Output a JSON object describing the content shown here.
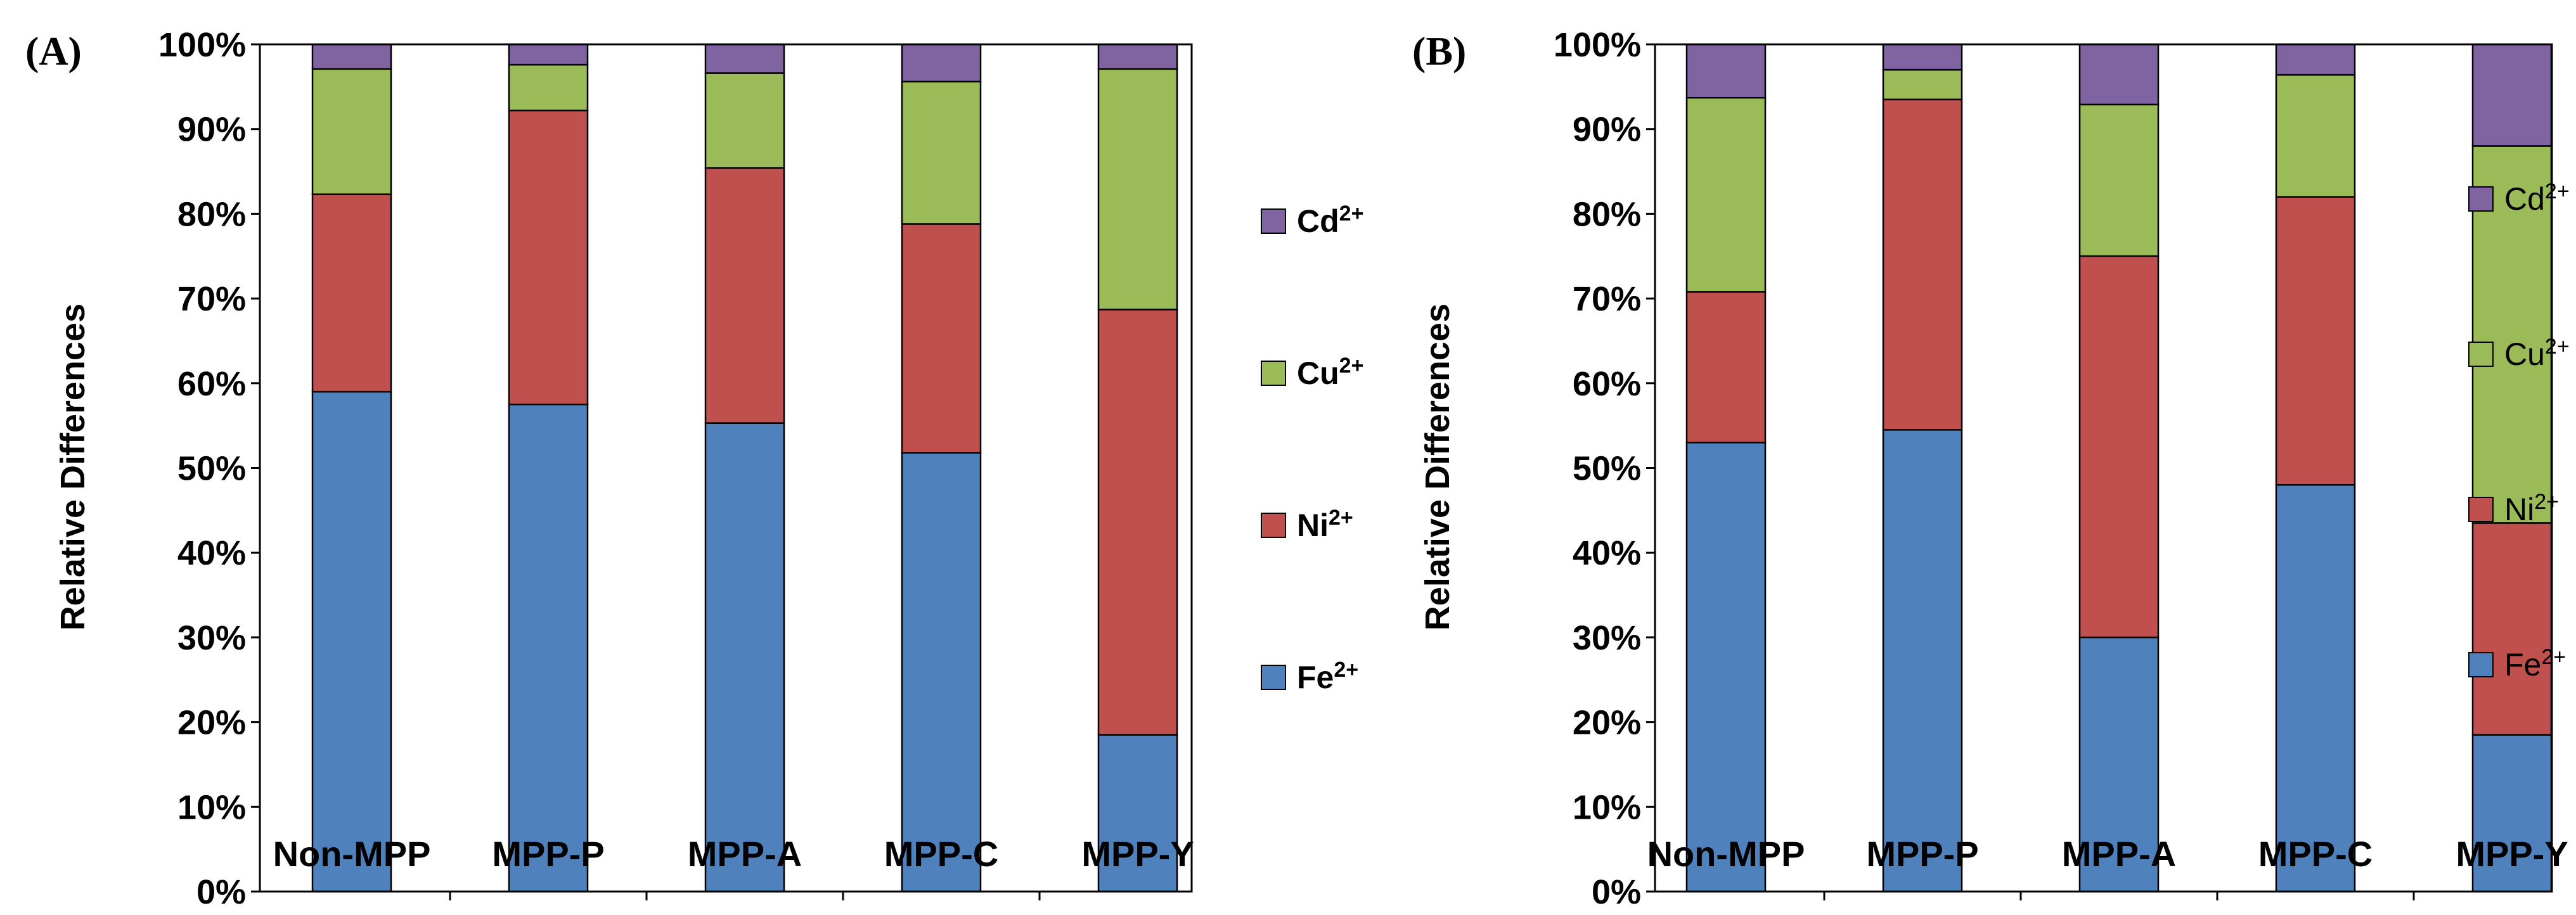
{
  "chart_data": [
    {
      "type": "bar",
      "stacked": true,
      "panel_label": "(A)",
      "ylabel": "Relative Differences",
      "ylim": [
        0,
        100
      ],
      "yticks": [
        "0%",
        "10%",
        "20%",
        "30%",
        "40%",
        "50%",
        "60%",
        "70%",
        "80%",
        "90%",
        "100%"
      ],
      "categories": [
        "Non-MPP",
        "MPP-P",
        "MPP-A",
        "MPP-C",
        "MPP-Y"
      ],
      "series": [
        {
          "name": "Fe",
          "sup": "2+",
          "color": "#4f81bd",
          "values": [
            59.0,
            57.5,
            55.3,
            51.8,
            18.5
          ]
        },
        {
          "name": "Ni",
          "sup": "2+",
          "color": "#c0504d",
          "values": [
            23.3,
            34.7,
            30.1,
            27.0,
            50.2
          ]
        },
        {
          "name": "Cu",
          "sup": "2+",
          "color": "#9bbb59",
          "values": [
            14.8,
            5.4,
            11.2,
            16.8,
            28.4
          ]
        },
        {
          "name": "Cd",
          "sup": "2+",
          "color": "#8064a2",
          "values": [
            2.9,
            2.4,
            3.4,
            4.4,
            2.9
          ]
        }
      ],
      "legend_order": [
        "Cd",
        "Cu",
        "Ni",
        "Fe"
      ],
      "legend_position": "right"
    },
    {
      "type": "bar",
      "stacked": true,
      "panel_label": "(B)",
      "ylabel": "Relative  Differences",
      "ylim": [
        0,
        100
      ],
      "yticks": [
        "0%",
        "10%",
        "20%",
        "30%",
        "40%",
        "50%",
        "60%",
        "70%",
        "80%",
        "90%",
        "100%"
      ],
      "categories": [
        "Non-MPP",
        "MPP-P",
        "MPP-A",
        "MPP-C",
        "MPP-Y"
      ],
      "series": [
        {
          "name": "Fe",
          "sup": "2+",
          "color": "#4f81bd",
          "values": [
            53.0,
            54.5,
            30.0,
            48.0,
            18.5
          ]
        },
        {
          "name": "Ni",
          "sup": "2+",
          "color": "#c0504d",
          "values": [
            17.8,
            39.0,
            45.0,
            34.0,
            25.0
          ]
        },
        {
          "name": "Cu",
          "sup": "2+",
          "color": "#9bbb59",
          "values": [
            22.9,
            3.5,
            17.9,
            14.4,
            44.5
          ]
        },
        {
          "name": "Cd",
          "sup": "2+",
          "color": "#8064a2",
          "values": [
            6.3,
            3.0,
            7.1,
            3.6,
            12.0
          ]
        }
      ],
      "legend_order": [
        "Cd",
        "Cu",
        "Ni",
        "Fe"
      ],
      "legend_position": "right"
    }
  ]
}
